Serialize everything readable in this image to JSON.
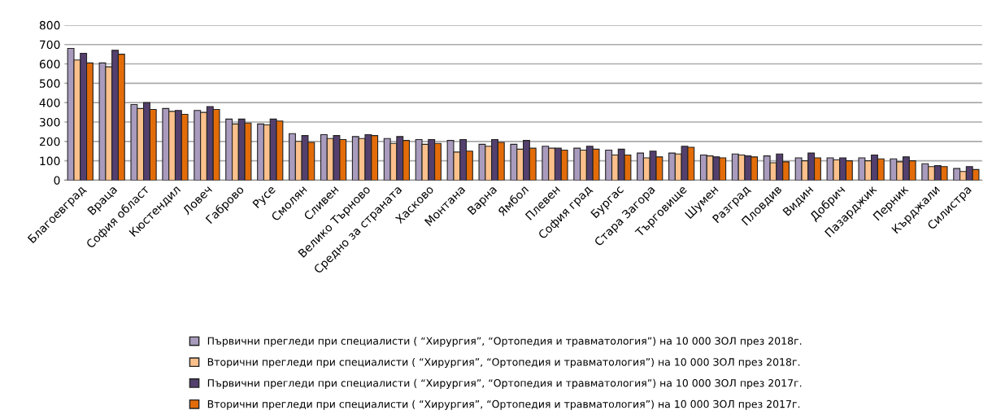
{
  "chart_data": {
    "type": "bar",
    "categories": [
      "Благоевград",
      "Враца",
      "София област",
      "Кюстендил",
      "Ловеч",
      "Габрово",
      "Русе",
      "Смолян",
      "Сливен",
      "Велико Търново",
      "Средно за страната",
      "Хасково",
      "Монтана",
      "Варна",
      "Ямбол",
      "Плевен",
      "София град",
      "Бургас",
      "Стара Загора",
      "Търговище",
      "Шумен",
      "Разград",
      "Пловдив",
      "Видин",
      "Добрич",
      "Пазарджик",
      "Перник",
      "Кърджали",
      "Силистра"
    ],
    "series": [
      {
        "name": "Първични прегледи при специалисти ( “Хирургия”, “Ортопедия и травматология”) на 10 000 ЗОЛ през 2018г.",
        "color": "#a99bbd",
        "values": [
          680,
          605,
          390,
          370,
          360,
          315,
          290,
          240,
          235,
          225,
          215,
          210,
          205,
          185,
          185,
          175,
          165,
          155,
          140,
          140,
          130,
          135,
          125,
          115,
          115,
          115,
          110,
          85,
          60
        ]
      },
      {
        "name": "Вторични прегледи при специалисти ( “Хирургия”, “Ортопедия и травматология”) на 10 000 ЗОЛ през 2018г.",
        "color": "#fbc08c",
        "values": [
          620,
          585,
          370,
          355,
          350,
          290,
          285,
          200,
          215,
          215,
          190,
          185,
          145,
          175,
          160,
          165,
          155,
          130,
          115,
          135,
          125,
          130,
          90,
          100,
          105,
          100,
          95,
          70,
          45
        ]
      },
      {
        "name": "Първични прегледи при специалисти ( “Хирургия”, “Ортопедия и травматология”) на 10 000 ЗОЛ през 2017г.",
        "color": "#54406e",
        "values": [
          655,
          670,
          400,
          360,
          380,
          315,
          315,
          230,
          230,
          235,
          225,
          210,
          210,
          210,
          205,
          165,
          175,
          160,
          150,
          175,
          120,
          125,
          135,
          140,
          115,
          130,
          120,
          75,
          70
        ]
      },
      {
        "name": "Вторични прегледи при специалисти ( “Хирургия”, “Ортопедия и травматология”) на 10 000 ЗОЛ през 2017г.",
        "color": "#e36c09",
        "values": [
          605,
          650,
          365,
          340,
          365,
          295,
          305,
          195,
          210,
          230,
          205,
          190,
          150,
          195,
          165,
          155,
          160,
          130,
          120,
          170,
          115,
          120,
          95,
          115,
          100,
          110,
          100,
          70,
          55
        ]
      }
    ],
    "ylim": [
      0,
      800
    ],
    "yticks": [
      0,
      100,
      200,
      300,
      400,
      500,
      600,
      700,
      800
    ],
    "grid": "y",
    "legend": "bottom"
  }
}
